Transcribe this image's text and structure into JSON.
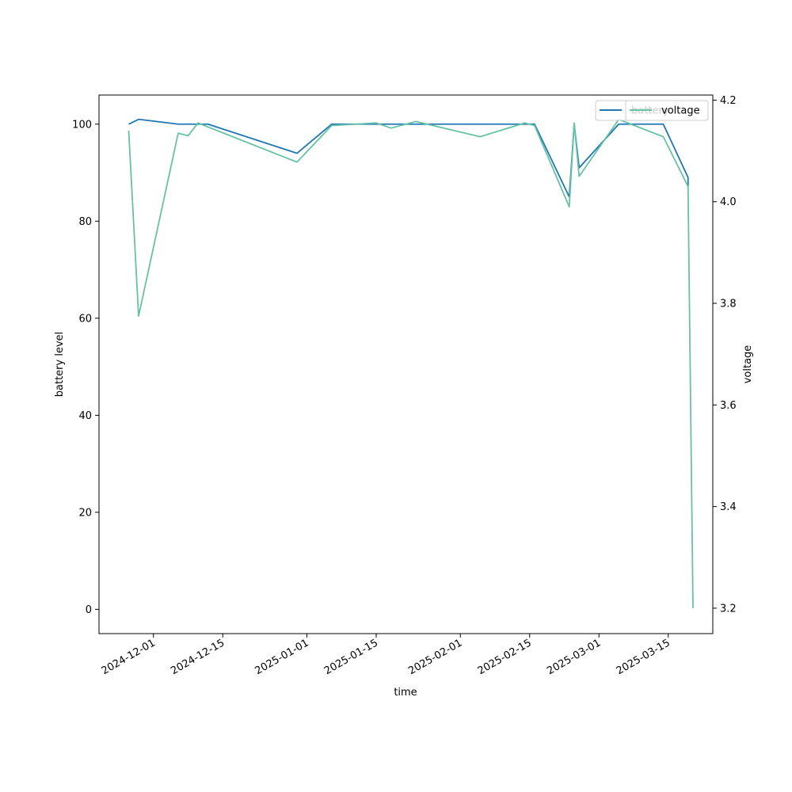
{
  "chart_data": {
    "type": "line",
    "xlabel": "time",
    "ylabel": "battery level",
    "y2label": "voltage",
    "x_ticks": [
      "2024-12-01",
      "2024-12-15",
      "2025-01-01",
      "2025-01-15",
      "2025-02-01",
      "2025-02-15",
      "2025-03-01",
      "2025-03-15"
    ],
    "y_ticks": [
      0,
      20,
      40,
      60,
      80,
      100
    ],
    "y2_ticks": [
      3.2,
      3.4,
      3.6,
      3.8,
      4.0,
      4.2
    ],
    "xlim": [
      "2024-11-20",
      "2025-03-24"
    ],
    "ylim": [
      -5,
      106
    ],
    "y2lim": [
      3.15,
      4.21
    ],
    "grid": false,
    "series": [
      {
        "name": "battery",
        "axis": "left",
        "color": "#1f77b4",
        "points": [
          [
            "2024-11-26",
            100
          ],
          [
            "2024-11-28",
            101
          ],
          [
            "2024-12-06",
            100
          ],
          [
            "2024-12-12",
            100
          ],
          [
            "2024-12-30",
            94
          ],
          [
            "2025-01-06",
            100
          ],
          [
            "2025-02-16",
            100
          ],
          [
            "2025-02-23",
            85
          ],
          [
            "2025-02-24",
            100
          ],
          [
            "2025-02-25",
            91
          ],
          [
            "2025-03-05",
            100
          ],
          [
            "2025-03-14",
            100
          ],
          [
            "2025-03-19",
            89
          ],
          [
            "2025-03-19",
            87
          ]
        ]
      },
      {
        "name": "voltage",
        "axis": "right",
        "color": "#66c2a5",
        "points": [
          [
            "2024-11-26",
            4.14
          ],
          [
            "2024-11-28",
            3.775
          ],
          [
            "2024-12-06",
            4.135
          ],
          [
            "2024-12-08",
            4.13
          ],
          [
            "2024-12-10",
            4.155
          ],
          [
            "2024-12-30",
            4.078
          ],
          [
            "2025-01-06",
            4.15
          ],
          [
            "2025-01-15",
            4.155
          ],
          [
            "2025-01-18",
            4.145
          ],
          [
            "2025-01-23",
            4.158
          ],
          [
            "2025-02-05",
            4.128
          ],
          [
            "2025-02-14",
            4.155
          ],
          [
            "2025-02-16",
            4.15
          ],
          [
            "2025-02-23",
            3.99
          ],
          [
            "2025-02-24",
            4.155
          ],
          [
            "2025-02-25",
            4.05
          ],
          [
            "2025-03-05",
            4.162
          ],
          [
            "2025-03-14",
            4.128
          ],
          [
            "2025-03-19",
            4.03
          ],
          [
            "2025-03-20",
            3.2
          ]
        ]
      }
    ],
    "legends": [
      {
        "entries": [
          "battery"
        ],
        "placement": "top-right"
      },
      {
        "entries": [
          "voltage"
        ],
        "placement": "top-right"
      }
    ]
  }
}
